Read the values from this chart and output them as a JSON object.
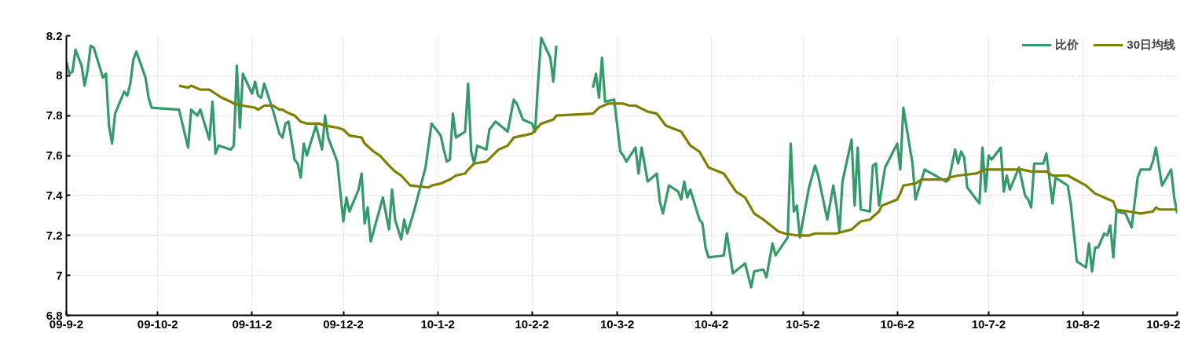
{
  "chart_data": {
    "type": "line",
    "xlim": [
      "2009-09-02",
      "2010-09-02"
    ],
    "xticks": [
      {
        "value": "2009-09-02",
        "label": "09-9-2"
      },
      {
        "value": "2009-10-02",
        "label": "09-10-2"
      },
      {
        "value": "2009-11-02",
        "label": "09-11-2"
      },
      {
        "value": "2009-12-02",
        "label": "09-12-2"
      },
      {
        "value": "2010-01-02",
        "label": "10-1-2"
      },
      {
        "value": "2010-02-02",
        "label": "10-2-2"
      },
      {
        "value": "2010-03-02",
        "label": "10-3-2"
      },
      {
        "value": "2010-04-02",
        "label": "10-4-2"
      },
      {
        "value": "2010-05-02",
        "label": "10-5-2"
      },
      {
        "value": "2010-06-02",
        "label": "10-6-2"
      },
      {
        "value": "2010-07-02",
        "label": "10-7-2"
      },
      {
        "value": "2010-08-02",
        "label": "10-8-2"
      },
      {
        "value": "2010-09-02",
        "label": "10-9-2"
      }
    ],
    "ylim": [
      6.8,
      8.2
    ],
    "yticks": [
      6.8,
      7,
      7.2,
      7.4,
      7.6,
      7.8,
      8,
      8.2
    ],
    "grid": true,
    "legend": "top right",
    "series": [
      {
        "name": "比价",
        "color": "#359a69",
        "x": [
          "2009-09-02",
          "2009-09-03",
          "2009-09-04",
          "2009-09-05",
          "2009-09-07",
          "2009-09-08",
          "2009-09-09",
          "2009-09-10",
          "2009-09-11",
          "2009-09-14",
          "2009-09-15",
          "2009-09-16",
          "2009-09-17",
          "2009-09-18",
          "2009-09-21",
          "2009-09-22",
          "2009-09-23",
          "2009-09-24",
          "2009-09-25",
          "2009-09-28",
          "2009-09-29",
          "2009-09-30",
          "2009-10-09",
          "2009-10-12",
          "2009-10-13",
          "2009-10-15",
          "2009-10-16",
          "2009-10-19",
          "2009-10-20",
          "2009-10-21",
          "2009-10-22",
          "2009-10-26",
          "2009-10-27",
          "2009-10-28",
          "2009-10-29",
          "2009-10-30",
          "2009-11-02",
          "2009-11-03",
          "2009-11-04",
          "2009-11-05",
          "2009-11-06",
          "2009-11-09",
          "2009-11-11",
          "2009-11-12",
          "2009-11-13",
          "2009-11-14",
          "2009-11-16",
          "2009-11-17",
          "2009-11-18",
          "2009-11-19",
          "2009-11-20",
          "2009-11-23",
          "2009-11-25",
          "2009-11-26",
          "2009-11-27",
          "2009-11-30",
          "2009-12-02",
          "2009-12-03",
          "2009-12-04",
          "2009-12-07",
          "2009-12-08",
          "2009-12-09",
          "2009-12-10",
          "2009-12-11",
          "2009-12-15",
          "2009-12-17",
          "2009-12-18",
          "2009-12-19",
          "2009-12-21",
          "2009-12-22",
          "2009-12-23",
          "2009-12-25",
          "2009-12-29",
          "2009-12-31",
          "2010-01-03",
          "2010-01-04",
          "2010-01-05",
          "2010-01-06",
          "2010-01-07",
          "2010-01-08",
          "2010-01-11",
          "2010-01-12",
          "2010-01-13",
          "2010-01-14",
          "2010-01-15",
          "2010-01-18",
          "2010-01-19",
          "2010-01-21",
          "2010-01-25",
          "2010-01-27",
          "2010-01-28",
          "2010-01-30",
          "2010-02-02",
          "2010-02-03",
          "2010-02-04",
          "2010-02-05",
          "2010-02-08",
          "2010-02-09",
          "2010-02-10",
          "2010-02-16",
          "2010-02-22",
          "2010-02-23",
          "2010-02-24",
          "2010-02-25",
          "2010-02-26",
          "2010-03-01",
          "2010-03-03",
          "2010-03-04",
          "2010-03-05",
          "2010-03-08",
          "2010-03-09",
          "2010-03-10",
          "2010-03-12",
          "2010-03-15",
          "2010-03-16",
          "2010-03-17",
          "2010-03-19",
          "2010-03-22",
          "2010-03-23",
          "2010-03-24",
          "2010-03-25",
          "2010-03-26",
          "2010-03-29",
          "2010-03-30",
          "2010-03-31",
          "2010-04-01",
          "2010-04-06",
          "2010-04-07",
          "2010-04-09",
          "2010-04-13",
          "2010-04-15",
          "2010-04-16",
          "2010-04-19",
          "2010-04-20",
          "2010-04-22",
          "2010-04-23",
          "2010-04-27",
          "2010-04-28",
          "2010-04-29",
          "2010-04-30",
          "2010-05-01",
          "2010-05-04",
          "2010-05-06",
          "2010-05-07",
          "2010-05-10",
          "2010-05-12",
          "2010-05-13",
          "2010-05-14",
          "2010-05-15",
          "2010-05-18",
          "2010-05-19",
          "2010-05-20",
          "2010-05-21",
          "2010-05-24",
          "2010-05-25",
          "2010-05-26",
          "2010-05-27",
          "2010-05-29",
          "2010-06-02",
          "2010-06-03",
          "2010-06-04",
          "2010-06-07",
          "2010-06-08",
          "2010-06-11",
          "2010-06-18",
          "2010-06-19",
          "2010-06-21",
          "2010-06-22",
          "2010-06-23",
          "2010-06-24",
          "2010-06-25",
          "2010-06-29",
          "2010-06-30",
          "2010-07-01",
          "2010-07-02",
          "2010-07-03",
          "2010-07-06",
          "2010-07-07",
          "2010-07-08",
          "2010-07-09",
          "2010-07-12",
          "2010-07-14",
          "2010-07-15",
          "2010-07-16",
          "2010-07-17",
          "2010-07-20",
          "2010-07-21",
          "2010-07-23",
          "2010-07-24",
          "2010-07-28",
          "2010-07-29",
          "2010-07-31",
          "2010-08-03",
          "2010-08-04",
          "2010-08-05",
          "2010-08-06",
          "2010-08-07",
          "2010-08-09",
          "2010-08-10",
          "2010-08-11",
          "2010-08-12",
          "2010-08-13",
          "2010-08-16",
          "2010-08-18",
          "2010-08-20",
          "2010-08-21",
          "2010-08-24",
          "2010-08-25",
          "2010-08-26",
          "2010-08-28",
          "2010-08-31",
          "2010-09-01",
          "2010-09-02"
        ],
        "values": [
          8.07,
          8.01,
          8.02,
          8.13,
          8.05,
          7.95,
          8.03,
          8.15,
          8.14,
          7.99,
          8.01,
          7.75,
          7.66,
          7.81,
          7.92,
          7.9,
          7.96,
          8.08,
          8.12,
          7.99,
          7.89,
          7.84,
          7.83,
          7.64,
          7.83,
          7.8,
          7.83,
          7.68,
          7.87,
          7.61,
          7.65,
          7.63,
          7.65,
          8.05,
          7.74,
          8.01,
          7.91,
          7.97,
          7.9,
          7.89,
          7.96,
          7.82,
          7.71,
          7.69,
          7.76,
          7.77,
          7.58,
          7.56,
          7.49,
          7.66,
          7.6,
          7.75,
          7.63,
          7.8,
          7.69,
          7.57,
          7.27,
          7.39,
          7.32,
          7.43,
          7.51,
          7.26,
          7.34,
          7.17,
          7.39,
          7.23,
          7.43,
          7.28,
          7.18,
          7.28,
          7.21,
          7.31,
          7.54,
          7.76,
          7.7,
          7.63,
          7.57,
          7.58,
          7.81,
          7.69,
          7.72,
          7.96,
          7.62,
          7.56,
          7.65,
          7.63,
          7.73,
          7.77,
          7.72,
          7.88,
          7.86,
          7.78,
          7.76,
          7.72,
          7.97,
          8.19,
          8.09,
          7.97,
          8.15,
          null,
          7.94,
          8.01,
          7.89,
          8.09,
          7.87,
          7.88,
          7.62,
          7.6,
          7.57,
          7.64,
          7.51,
          7.64,
          7.47,
          7.51,
          7.37,
          7.31,
          7.45,
          7.42,
          7.38,
          7.47,
          7.39,
          7.43,
          7.28,
          7.26,
          7.14,
          7.09,
          7.1,
          7.21,
          7.01,
          7.06,
          6.94,
          7.02,
          7.03,
          6.99,
          7.16,
          7.1,
          7.19,
          7.66,
          7.32,
          7.35,
          7.19,
          7.44,
          7.55,
          7.5,
          7.28,
          7.45,
          7.35,
          7.22,
          7.47,
          7.68,
          7.35,
          7.64,
          7.33,
          7.32,
          7.55,
          7.56,
          7.35,
          7.54,
          7.66,
          7.53,
          7.84,
          7.56,
          7.38,
          7.53,
          7.47,
          7.48,
          7.63,
          7.56,
          7.62,
          7.59,
          7.44,
          7.36,
          7.64,
          7.42,
          7.6,
          7.58,
          7.64,
          7.42,
          7.5,
          7.43,
          7.54,
          7.4,
          7.38,
          7.34,
          7.56,
          7.56,
          7.61,
          7.36,
          7.49,
          7.45,
          7.36,
          7.07,
          7.04,
          7.16,
          7.02,
          7.14,
          7.14,
          7.21,
          7.2,
          7.25,
          7.09,
          7.32,
          7.31,
          7.24,
          7.49,
          7.53,
          7.53,
          7.57,
          7.64,
          7.45,
          7.53,
          7.39,
          7.31
        ]
      },
      {
        "name": "30日均线",
        "color": "#808000",
        "x": [
          "2009-10-09",
          "2009-10-12",
          "2009-10-13",
          "2009-10-16",
          "2009-10-19",
          "2009-10-21",
          "2009-10-23",
          "2009-10-26",
          "2009-10-27",
          "2009-10-30",
          "2009-11-03",
          "2009-11-04",
          "2009-11-06",
          "2009-11-09",
          "2009-11-11",
          "2009-11-12",
          "2009-11-13",
          "2009-11-16",
          "2009-11-18",
          "2009-11-20",
          "2009-11-24",
          "2009-11-26",
          "2009-11-30",
          "2009-12-02",
          "2009-12-04",
          "2009-12-08",
          "2009-12-09",
          "2009-12-12",
          "2009-12-14",
          "2009-12-17",
          "2009-12-19",
          "2009-12-21",
          "2009-12-24",
          "2009-12-30",
          "2009-12-31",
          "2010-01-03",
          "2010-01-06",
          "2010-01-08",
          "2010-01-11",
          "2010-01-12",
          "2010-01-14",
          "2010-01-18",
          "2010-01-20",
          "2010-01-22",
          "2010-01-25",
          "2010-01-27",
          "2010-01-30",
          "2010-02-02",
          "2010-02-05",
          "2010-02-09",
          "2010-02-10",
          "2010-02-22",
          "2010-02-24",
          "2010-02-27",
          "2010-03-04",
          "2010-03-06",
          "2010-03-08",
          "2010-03-12",
          "2010-03-15",
          "2010-03-18",
          "2010-03-23",
          "2010-03-26",
          "2010-03-29",
          "2010-04-01",
          "2010-04-06",
          "2010-04-10",
          "2010-04-13",
          "2010-04-16",
          "2010-04-19",
          "2010-04-24",
          "2010-04-26",
          "2010-04-30",
          "2010-05-04",
          "2010-05-06",
          "2010-05-13",
          "2010-05-18",
          "2010-05-21",
          "2010-05-24",
          "2010-05-27",
          "2010-05-28",
          "2010-06-02",
          "2010-06-03",
          "2010-06-04",
          "2010-06-08",
          "2010-06-10",
          "2010-06-18",
          "2010-06-19",
          "2010-06-22",
          "2010-06-28",
          "2010-07-01",
          "2010-07-06",
          "2010-07-09",
          "2010-07-13",
          "2010-07-16",
          "2010-07-21",
          "2010-07-23",
          "2010-07-28",
          "2010-08-03",
          "2010-08-06",
          "2010-08-09",
          "2010-08-12",
          "2010-08-13",
          "2010-08-17",
          "2010-08-21",
          "2010-08-25",
          "2010-08-26",
          "2010-08-27",
          "2010-09-02"
        ],
        "values": [
          7.95,
          7.94,
          7.95,
          7.93,
          7.93,
          7.91,
          7.89,
          7.87,
          7.86,
          7.85,
          7.84,
          7.83,
          7.85,
          7.85,
          7.83,
          7.83,
          7.82,
          7.8,
          7.77,
          7.76,
          7.76,
          7.75,
          7.74,
          7.73,
          7.7,
          7.69,
          7.66,
          7.62,
          7.6,
          7.55,
          7.52,
          7.5,
          7.45,
          7.44,
          7.45,
          7.46,
          7.48,
          7.5,
          7.51,
          7.53,
          7.56,
          7.57,
          7.6,
          7.63,
          7.65,
          7.69,
          7.7,
          7.71,
          7.76,
          7.78,
          7.8,
          7.81,
          7.84,
          7.86,
          7.86,
          7.85,
          7.85,
          7.82,
          7.81,
          7.75,
          7.72,
          7.65,
          7.62,
          7.54,
          7.51,
          7.42,
          7.39,
          7.31,
          7.28,
          7.22,
          7.21,
          7.2,
          7.2,
          7.21,
          7.21,
          7.23,
          7.27,
          7.28,
          7.32,
          7.35,
          7.38,
          7.41,
          7.45,
          7.46,
          7.48,
          7.48,
          7.49,
          7.5,
          7.51,
          7.53,
          7.53,
          7.53,
          7.53,
          7.52,
          7.52,
          7.5,
          7.5,
          7.45,
          7.41,
          7.39,
          7.37,
          7.33,
          7.32,
          7.31,
          7.32,
          7.34,
          7.33,
          7.33
        ]
      }
    ]
  }
}
